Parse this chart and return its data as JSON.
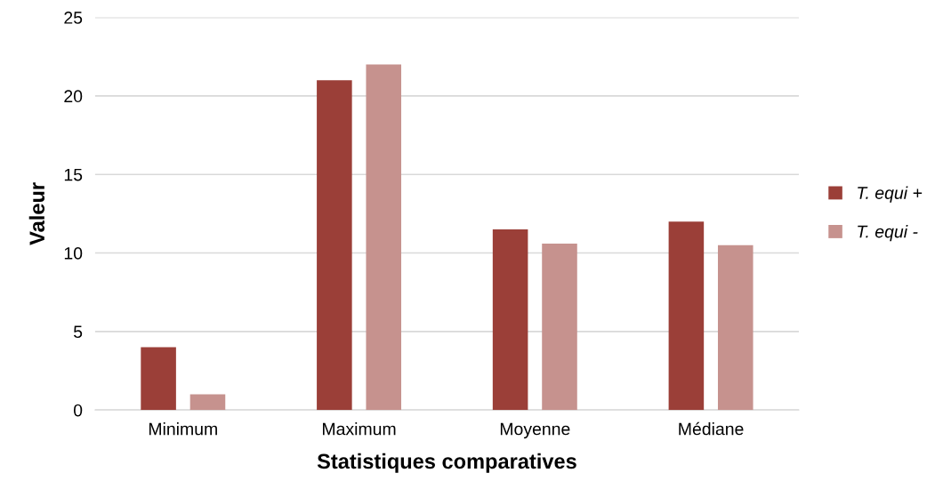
{
  "chart_data": {
    "type": "bar",
    "xlabel": "Statistiques comparatives",
    "ylabel": "Valeur",
    "categories": [
      "Minimum",
      "Maximum",
      "Moyenne",
      "Médiane"
    ],
    "series": [
      {
        "name": "T. equi +",
        "color": "#9b3f38",
        "values": [
          4,
          21,
          11.5,
          12
        ]
      },
      {
        "name": "T. equi -",
        "color": "#c6928e",
        "values": [
          1,
          22,
          10.6,
          10.5
        ]
      }
    ],
    "ylim": [
      0,
      25
    ],
    "yticks": [
      0,
      5,
      10,
      15,
      20,
      25
    ],
    "grid": "y",
    "legend": "right"
  }
}
